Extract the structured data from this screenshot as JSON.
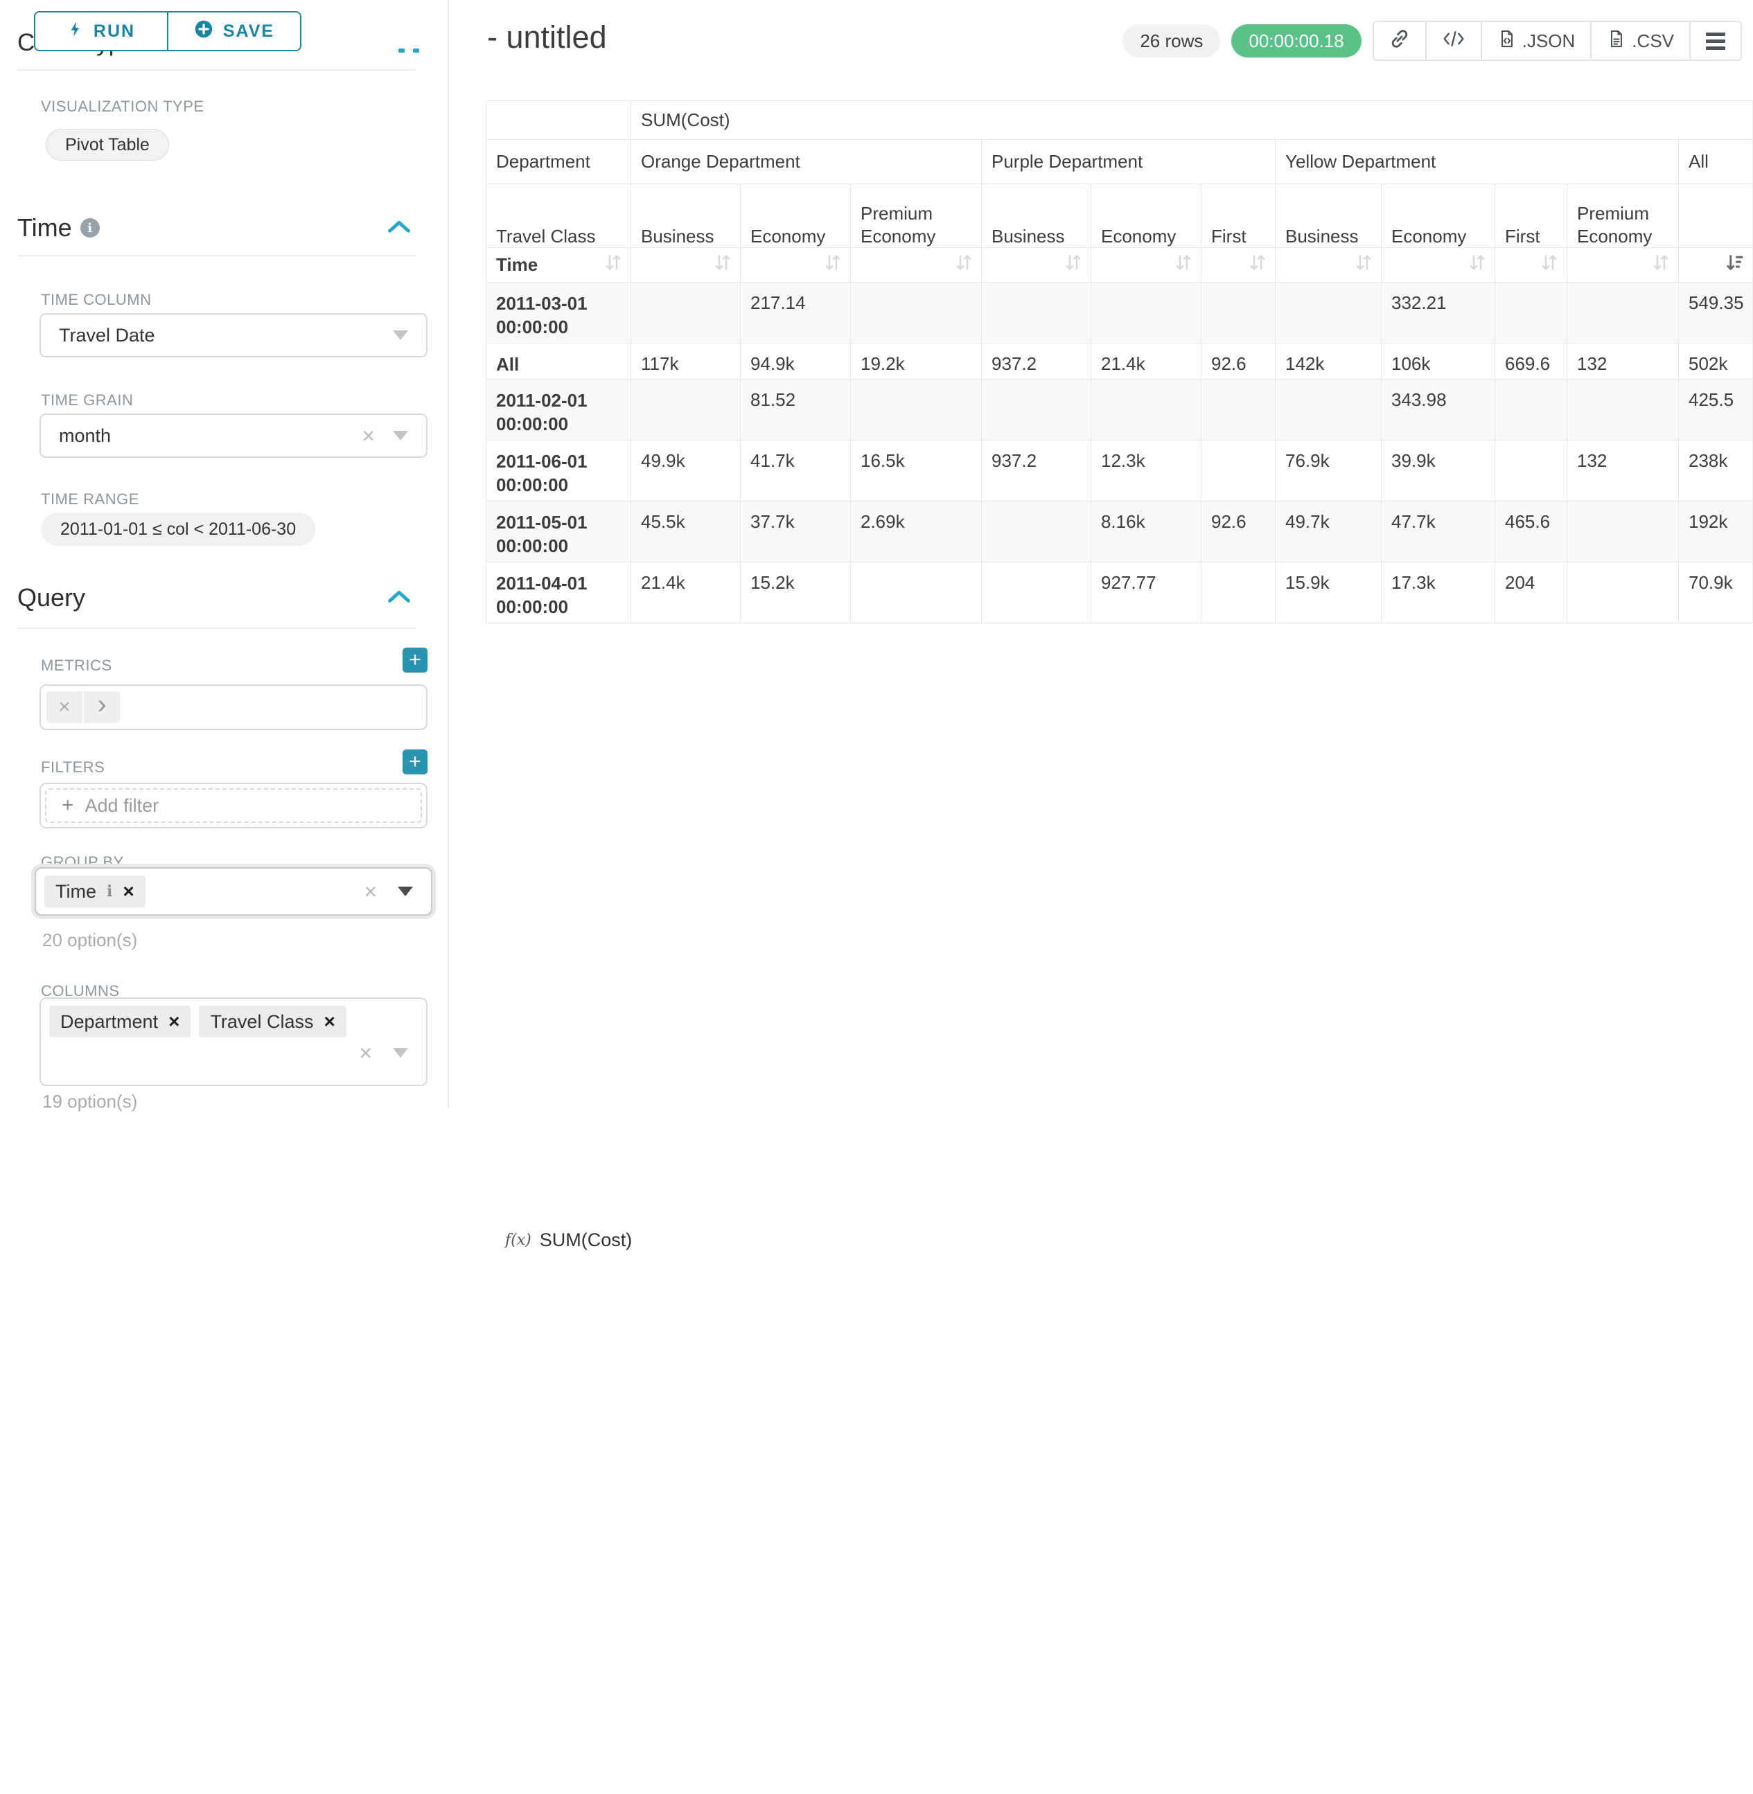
{
  "colors": {
    "button_teal": "#1a85a0",
    "accent_teal": "#20a7c9",
    "timer_green": "#5ac189"
  },
  "toolbar": {
    "run_label": "RUN",
    "save_label": "SAVE"
  },
  "panel": {
    "chart_type_heading": "Chart Type",
    "visualization_type_label": "VISUALIZATION TYPE",
    "visualization_type_value": "Pivot Table",
    "time": {
      "heading": "Time",
      "column_label": "TIME COLUMN",
      "column_value": "Travel Date",
      "grain_label": "TIME GRAIN",
      "grain_value": "month",
      "range_label": "TIME RANGE",
      "range_value": "2011-01-01 ≤ col < 2011-06-30"
    },
    "query": {
      "heading": "Query",
      "metrics_label": "METRICS",
      "metric_fx": "f(x)",
      "metric_value": "SUM(Cost)",
      "filters_label": "FILTERS",
      "add_filter_label": "Add filter",
      "group_by_label": "GROUP BY",
      "group_by_tag": "Time",
      "group_by_hint": "20 option(s)",
      "columns_label": "COLUMNS",
      "columns_tags": [
        "Department",
        "Travel Class"
      ],
      "columns_hint": "19 option(s)"
    }
  },
  "chart_header": {
    "title": "- untitled",
    "rows_badge": "26 rows",
    "timer": "00:00:00.18",
    "json_label": ".JSON",
    "csv_label": ".CSV"
  },
  "chart_data": {
    "type": "table",
    "table_kind": "pivot",
    "metric": "SUM(Cost)",
    "row_dim_label": "Department",
    "row_subdim_label": "Travel Class",
    "time_label": "Time",
    "column_groups": [
      {
        "label": "Orange Department",
        "columns": [
          "Business",
          "Economy",
          "Premium Economy"
        ]
      },
      {
        "label": "Purple Department",
        "columns": [
          "Business",
          "Economy",
          "First"
        ]
      },
      {
        "label": "Yellow Department",
        "columns": [
          "Business",
          "Economy",
          "First",
          "Premium Economy"
        ]
      },
      {
        "label": "All",
        "columns": [
          ""
        ]
      }
    ],
    "rows": [
      {
        "label": "2011-03-01 00:00:00",
        "values": [
          "",
          "217.14",
          "",
          "",
          "",
          "",
          "",
          "332.21",
          "",
          "",
          "549.35"
        ]
      },
      {
        "label": "All",
        "values": [
          "117k",
          "94.9k",
          "19.2k",
          "937.2",
          "21.4k",
          "92.6",
          "142k",
          "106k",
          "669.6",
          "132",
          "502k"
        ]
      },
      {
        "label": "2011-02-01 00:00:00",
        "values": [
          "",
          "81.52",
          "",
          "",
          "",
          "",
          "",
          "343.98",
          "",
          "",
          "425.5"
        ]
      },
      {
        "label": "2011-06-01 00:00:00",
        "values": [
          "49.9k",
          "41.7k",
          "16.5k",
          "937.2",
          "12.3k",
          "",
          "76.9k",
          "39.9k",
          "",
          "132",
          "238k"
        ]
      },
      {
        "label": "2011-05-01 00:00:00",
        "values": [
          "45.5k",
          "37.7k",
          "2.69k",
          "",
          "8.16k",
          "92.6",
          "49.7k",
          "47.7k",
          "465.6",
          "",
          "192k"
        ]
      },
      {
        "label": "2011-04-01 00:00:00",
        "values": [
          "21.4k",
          "15.2k",
          "",
          "",
          "927.77",
          "",
          "15.9k",
          "17.3k",
          "204",
          "",
          "70.9k"
        ]
      }
    ]
  }
}
